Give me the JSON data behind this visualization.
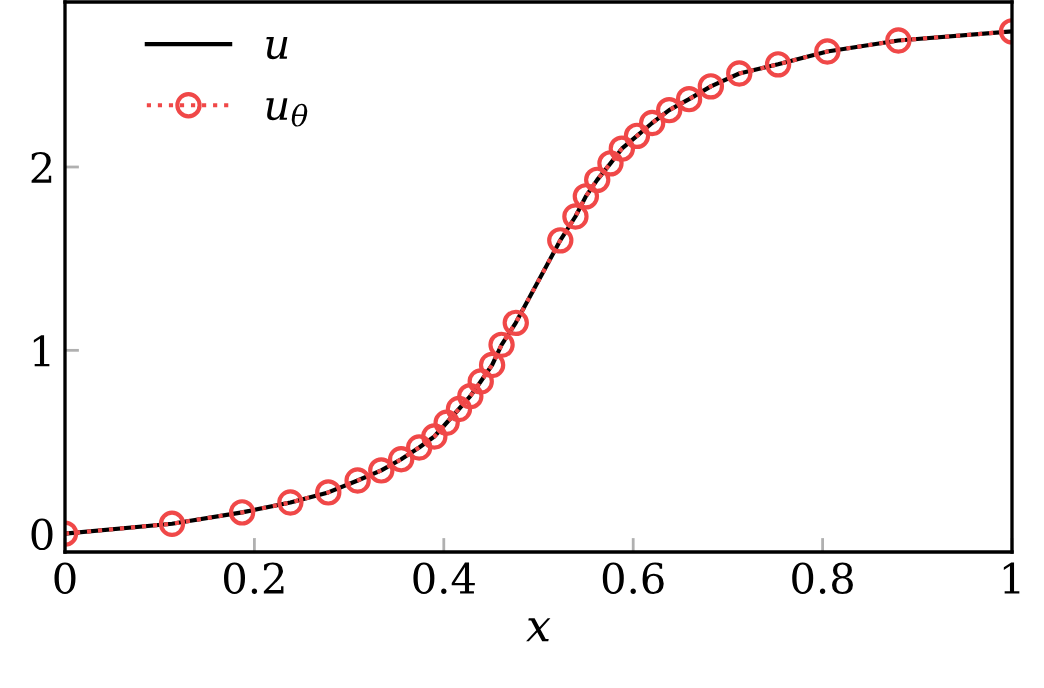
{
  "chart_data": {
    "type": "line",
    "xlabel": "x",
    "xlim": [
      0,
      1
    ],
    "ylim": [
      -0.1,
      2.9
    ],
    "xticks": [
      0,
      0.2,
      0.4,
      0.6,
      0.8,
      1
    ],
    "yticks": [
      0,
      1,
      2
    ],
    "grid": false,
    "legend": "top left",
    "series": [
      {
        "name": "u",
        "color": "#000000",
        "line_style": "solid",
        "marker": "none",
        "x": [
          0,
          0.113,
          0.187,
          0.238,
          0.278,
          0.309,
          0.334,
          0.355,
          0.374,
          0.39,
          0.403,
          0.416,
          0.428,
          0.439,
          0.451,
          0.461,
          0.476,
          0.523,
          0.539,
          0.55,
          0.562,
          0.576,
          0.588,
          0.604,
          0.62,
          0.638,
          0.659,
          0.682,
          0.712,
          0.753,
          0.805,
          0.88,
          1.0
        ],
        "values": [
          0,
          0.054,
          0.116,
          0.17,
          0.225,
          0.29,
          0.345,
          0.406,
          0.47,
          0.53,
          0.605,
          0.68,
          0.75,
          0.83,
          0.92,
          1.03,
          1.15,
          1.6,
          1.73,
          1.84,
          1.93,
          2.02,
          2.1,
          2.17,
          2.24,
          2.31,
          2.37,
          2.44,
          2.51,
          2.56,
          2.63,
          2.69,
          2.74
        ]
      },
      {
        "name": "u$_{θ}$",
        "color": "#f04848",
        "line_style": "dotted",
        "marker": "circle",
        "x": [
          0,
          0.113,
          0.187,
          0.238,
          0.278,
          0.309,
          0.334,
          0.355,
          0.374,
          0.39,
          0.403,
          0.416,
          0.428,
          0.439,
          0.451,
          0.461,
          0.476,
          0.523,
          0.539,
          0.55,
          0.562,
          0.576,
          0.588,
          0.604,
          0.62,
          0.638,
          0.659,
          0.682,
          0.712,
          0.753,
          0.805,
          0.88,
          1.0
        ],
        "values": [
          0,
          0.054,
          0.116,
          0.17,
          0.225,
          0.29,
          0.345,
          0.406,
          0.47,
          0.53,
          0.605,
          0.68,
          0.75,
          0.83,
          0.92,
          1.03,
          1.15,
          1.6,
          1.73,
          1.84,
          1.93,
          2.02,
          2.1,
          2.17,
          2.24,
          2.31,
          2.37,
          2.44,
          2.51,
          2.56,
          2.63,
          2.69,
          2.74
        ]
      }
    ]
  }
}
